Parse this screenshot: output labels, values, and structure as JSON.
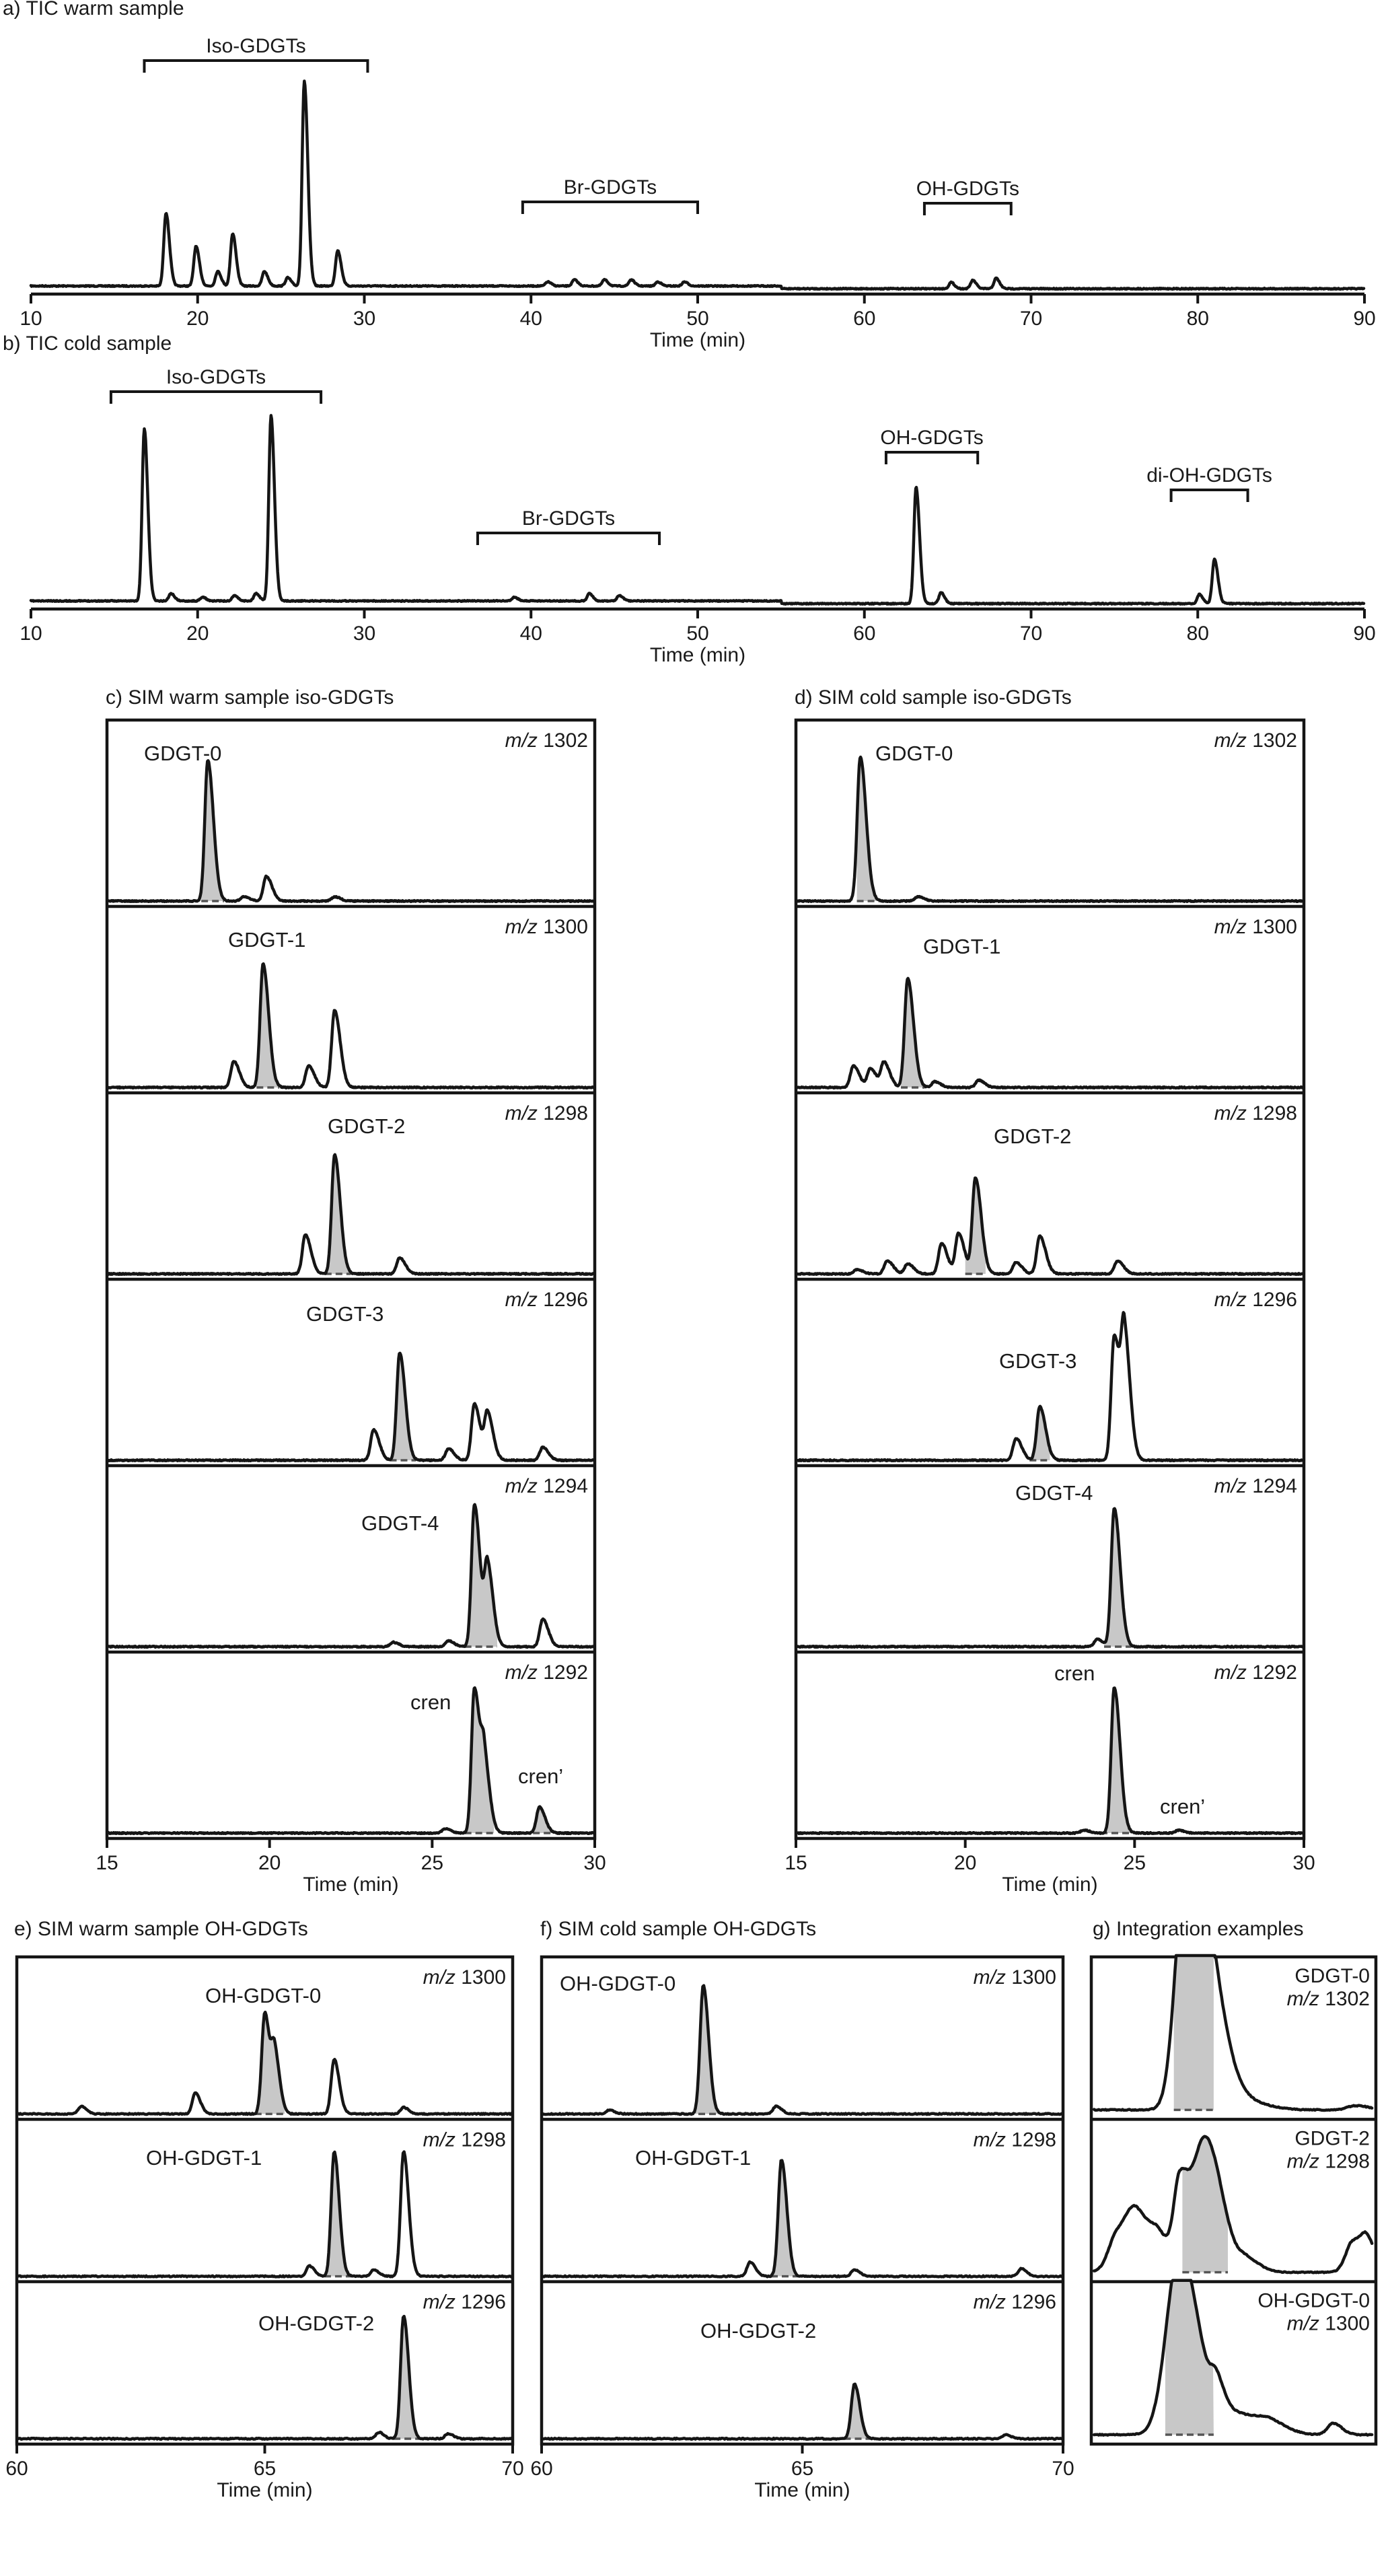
{
  "figure_type": "GC-MS chromatograms (TIC and SIM) of GDGT lipids",
  "panels": {
    "a": {
      "title": "a) TIC warm sample",
      "xlabel": "Time (min)",
      "xlim": [
        10,
        90
      ],
      "ticks": [
        10,
        20,
        30,
        40,
        50,
        60,
        70,
        80,
        90
      ],
      "groups": [
        {
          "label": "Iso-GDGTs",
          "x1": 16.8,
          "x2": 30.2
        },
        {
          "label": "Br-GDGTs",
          "x1": 39.5,
          "x2": 50.0
        },
        {
          "label": "OH-GDGTs",
          "x1": 63.6,
          "x2": 68.8
        }
      ]
    },
    "b": {
      "title": "b) TIC cold sample",
      "xlabel": "Time (min)",
      "xlim": [
        10,
        90
      ],
      "ticks": [
        10,
        20,
        30,
        40,
        50,
        60,
        70,
        80,
        90
      ],
      "groups": [
        {
          "label": "Iso-GDGTs",
          "x1": 14.8,
          "x2": 27.4
        },
        {
          "label": "Br-GDGTs",
          "x1": 36.8,
          "x2": 47.7
        },
        {
          "label": "OH-GDGTs",
          "x1": 61.3,
          "x2": 66.8
        },
        {
          "label": "di-OH-GDGTs",
          "x1": 78.4,
          "x2": 83.0
        }
      ]
    },
    "c": {
      "title": "c) SIM warm sample iso-GDGTs",
      "xlabel": "Time (min)",
      "xlim": [
        15,
        30
      ],
      "ticks": [
        15,
        20,
        25,
        30
      ]
    },
    "d": {
      "title": "d) SIM cold sample iso-GDGTs",
      "xlabel": "Time (min)",
      "xlim": [
        15,
        30
      ],
      "ticks": [
        15,
        20,
        25,
        30
      ]
    },
    "e": {
      "title": "e) SIM warm sample OH-GDGTs",
      "xlabel": "Time (min)",
      "xlim": [
        60,
        70
      ],
      "ticks": [
        60,
        65,
        70
      ]
    },
    "f": {
      "title": "f) SIM cold sample OH-GDGTs",
      "xlabel": "Time (min)",
      "xlim": [
        60,
        70
      ],
      "ticks": [
        60,
        65,
        70
      ]
    },
    "g": {
      "title": "g) Integration examples"
    }
  },
  "mz_prefix": "m/z",
  "chart_data": [
    {
      "id": "a",
      "type": "line",
      "title": "a) TIC warm sample",
      "xlabel": "Time (min)",
      "xlim": [
        10,
        90
      ],
      "baseline_step_at": 55,
      "peaks": [
        {
          "x": 18.1,
          "y": 0.35
        },
        {
          "x": 19.9,
          "y": 0.19
        },
        {
          "x": 21.2,
          "y": 0.07
        },
        {
          "x": 22.1,
          "y": 0.25
        },
        {
          "x": 24.0,
          "y": 0.07
        },
        {
          "x": 25.4,
          "y": 0.04
        },
        {
          "x": 26.4,
          "y": 0.98
        },
        {
          "x": 28.4,
          "y": 0.17
        },
        {
          "x": 41.0,
          "y": 0.02
        },
        {
          "x": 42.6,
          "y": 0.03
        },
        {
          "x": 44.4,
          "y": 0.03
        },
        {
          "x": 46.0,
          "y": 0.03
        },
        {
          "x": 47.6,
          "y": 0.02
        },
        {
          "x": 49.2,
          "y": 0.02
        },
        {
          "x": 65.2,
          "y": 0.03
        },
        {
          "x": 66.5,
          "y": 0.04
        },
        {
          "x": 67.9,
          "y": 0.05
        }
      ]
    },
    {
      "id": "b",
      "type": "line",
      "title": "b) TIC cold sample",
      "xlabel": "Time (min)",
      "xlim": [
        10,
        90
      ],
      "baseline_step_at": 55,
      "peaks": [
        {
          "x": 16.8,
          "y": 0.93
        },
        {
          "x": 18.4,
          "y": 0.04
        },
        {
          "x": 20.3,
          "y": 0.02
        },
        {
          "x": 22.2,
          "y": 0.03
        },
        {
          "x": 23.5,
          "y": 0.04
        },
        {
          "x": 24.4,
          "y": 1.0
        },
        {
          "x": 39.0,
          "y": 0.02
        },
        {
          "x": 43.5,
          "y": 0.04
        },
        {
          "x": 45.3,
          "y": 0.03
        },
        {
          "x": 63.1,
          "y": 0.63
        },
        {
          "x": 64.6,
          "y": 0.06
        },
        {
          "x": 80.1,
          "y": 0.05
        },
        {
          "x": 81.0,
          "y": 0.24
        }
      ]
    },
    {
      "id": "c",
      "type": "line",
      "title": "c) SIM warm sample iso-GDGTs",
      "xlabel": "Time (min)",
      "xlim": [
        15,
        30
      ],
      "traces": [
        {
          "mz": "1302",
          "label": "GDGT-0",
          "fill": [
            17.9,
            18.6
          ],
          "peaks": [
            {
              "x": 18.1,
              "y": 0.97
            },
            {
              "x": 19.2,
              "y": 0.03
            },
            {
              "x": 19.9,
              "y": 0.17
            },
            {
              "x": 22.0,
              "y": 0.03
            }
          ]
        },
        {
          "mz": "1300",
          "label": "GDGT-1",
          "fill": [
            19.6,
            20.3
          ],
          "peaks": [
            {
              "x": 18.9,
              "y": 0.18
            },
            {
              "x": 19.8,
              "y": 0.85
            },
            {
              "x": 21.2,
              "y": 0.15
            },
            {
              "x": 22.0,
              "y": 0.53
            }
          ]
        },
        {
          "mz": "1298",
          "label": "GDGT-2",
          "fill": [
            21.7,
            22.5
          ],
          "peaks": [
            {
              "x": 21.1,
              "y": 0.27
            },
            {
              "x": 22.0,
              "y": 0.82
            },
            {
              "x": 24.0,
              "y": 0.11
            }
          ]
        },
        {
          "mz": "1296",
          "label": "GDGT-3",
          "fill": [
            23.7,
            24.5
          ],
          "peaks": [
            {
              "x": 23.2,
              "y": 0.21
            },
            {
              "x": 24.0,
              "y": 0.74
            },
            {
              "x": 25.5,
              "y": 0.08
            },
            {
              "x": 26.3,
              "y": 0.39
            },
            {
              "x": 26.7,
              "y": 0.32
            },
            {
              "x": 28.4,
              "y": 0.09
            }
          ]
        },
        {
          "mz": "1294",
          "label": "GDGT-4",
          "fill": [
            26.0,
            27.0
          ],
          "peaks": [
            {
              "x": 23.8,
              "y": 0.03
            },
            {
              "x": 25.5,
              "y": 0.04
            },
            {
              "x": 26.3,
              "y": 0.98
            },
            {
              "x": 26.7,
              "y": 0.55
            },
            {
              "x": 28.4,
              "y": 0.19
            }
          ]
        },
        {
          "mz": "1292",
          "label": "cren",
          "label2": "cren’",
          "fill": [
            26.0,
            26.9
          ],
          "fill2": [
            28.1,
            28.7
          ],
          "peaks": [
            {
              "x": 25.4,
              "y": 0.03
            },
            {
              "x": 26.3,
              "y": 1.0
            },
            {
              "x": 26.6,
              "y": 0.45
            },
            {
              "x": 28.3,
              "y": 0.18
            }
          ]
        }
      ]
    },
    {
      "id": "d",
      "type": "line",
      "title": "d) SIM cold sample iso-GDGTs",
      "xlabel": "Time (min)",
      "xlim": [
        15,
        30
      ],
      "traces": [
        {
          "mz": "1302",
          "label": "GDGT-0",
          "fill": [
            16.8,
            17.5
          ],
          "peaks": [
            {
              "x": 16.9,
              "y": 0.99
            },
            {
              "x": 18.6,
              "y": 0.03
            }
          ]
        },
        {
          "mz": "1300",
          "label": "GDGT-1",
          "fill": [
            18.1,
            18.8
          ],
          "peaks": [
            {
              "x": 16.7,
              "y": 0.15
            },
            {
              "x": 17.2,
              "y": 0.13
            },
            {
              "x": 17.6,
              "y": 0.17
            },
            {
              "x": 18.3,
              "y": 0.75
            },
            {
              "x": 19.1,
              "y": 0.04
            },
            {
              "x": 20.4,
              "y": 0.05
            }
          ]
        },
        {
          "mz": "1298",
          "label": "GDGT-2",
          "fill": [
            20.0,
            20.6
          ],
          "peaks": [
            {
              "x": 16.8,
              "y": 0.03
            },
            {
              "x": 17.7,
              "y": 0.09
            },
            {
              "x": 18.3,
              "y": 0.07
            },
            {
              "x": 19.3,
              "y": 0.21
            },
            {
              "x": 19.8,
              "y": 0.28
            },
            {
              "x": 20.3,
              "y": 0.66
            },
            {
              "x": 21.5,
              "y": 0.08
            },
            {
              "x": 22.2,
              "y": 0.26
            },
            {
              "x": 24.5,
              "y": 0.09
            }
          ]
        },
        {
          "mz": "1296",
          "label": "GDGT-3",
          "fill": [
            21.9,
            22.5
          ],
          "peaks": [
            {
              "x": 21.5,
              "y": 0.15
            },
            {
              "x": 22.2,
              "y": 0.37
            },
            {
              "x": 24.4,
              "y": 0.86
            },
            {
              "x": 24.7,
              "y": 0.81
            }
          ]
        },
        {
          "mz": "1294",
          "label": "GDGT-4",
          "fill": [
            24.1,
            24.9
          ],
          "peaks": [
            {
              "x": 23.9,
              "y": 0.05
            },
            {
              "x": 24.4,
              "y": 0.95
            }
          ]
        },
        {
          "mz": "1292",
          "label": "cren",
          "label2": "cren’",
          "fill": [
            24.0,
            25.0
          ],
          "peaks": [
            {
              "x": 23.5,
              "y": 0.02
            },
            {
              "x": 24.4,
              "y": 1.0
            },
            {
              "x": 26.3,
              "y": 0.02
            }
          ]
        }
      ]
    },
    {
      "id": "e",
      "type": "line",
      "title": "e) SIM warm sample OH-GDGTs",
      "xlabel": "Time (min)",
      "xlim": [
        60,
        70
      ],
      "traces": [
        {
          "mz": "1300",
          "label": "OH-GDGT-0",
          "fill": [
            64.8,
            65.4
          ],
          "peaks": [
            {
              "x": 61.3,
              "y": 0.06
            },
            {
              "x": 63.6,
              "y": 0.16
            },
            {
              "x": 65.0,
              "y": 0.78
            },
            {
              "x": 65.2,
              "y": 0.45
            },
            {
              "x": 66.4,
              "y": 0.42
            },
            {
              "x": 67.8,
              "y": 0.05
            }
          ]
        },
        {
          "mz": "1298",
          "label": "OH-GDGT-1",
          "fill": [
            66.2,
            66.8
          ],
          "peaks": [
            {
              "x": 65.9,
              "y": 0.08
            },
            {
              "x": 66.4,
              "y": 0.96
            },
            {
              "x": 67.8,
              "y": 0.96
            },
            {
              "x": 67.2,
              "y": 0.05
            }
          ]
        },
        {
          "mz": "1296",
          "label": "OH-GDGT-2",
          "fill": [
            67.6,
            68.2
          ],
          "peaks": [
            {
              "x": 67.3,
              "y": 0.05
            },
            {
              "x": 67.8,
              "y": 0.95
            },
            {
              "x": 68.7,
              "y": 0.04
            }
          ]
        }
      ]
    },
    {
      "id": "f",
      "type": "line",
      "title": "f) SIM cold sample OH-GDGTs",
      "xlabel": "Time (min)",
      "xlim": [
        60,
        70
      ],
      "traces": [
        {
          "mz": "1300",
          "label": "OH-GDGT-0",
          "fill": [
            62.8,
            63.5
          ],
          "peaks": [
            {
              "x": 61.3,
              "y": 0.03
            },
            {
              "x": 63.1,
              "y": 0.99
            },
            {
              "x": 64.5,
              "y": 0.06
            }
          ]
        },
        {
          "mz": "1298",
          "label": "OH-GDGT-1",
          "fill": [
            64.4,
            65.0
          ],
          "peaks": [
            {
              "x": 64.0,
              "y": 0.11
            },
            {
              "x": 64.6,
              "y": 0.9
            },
            {
              "x": 66.0,
              "y": 0.05
            },
            {
              "x": 69.2,
              "y": 0.06
            }
          ]
        },
        {
          "mz": "1296",
          "label": "OH-GDGT-2",
          "fill": [
            65.8,
            66.3
          ],
          "peaks": [
            {
              "x": 66.0,
              "y": 0.42
            },
            {
              "x": 68.9,
              "y": 0.03
            }
          ]
        }
      ]
    },
    {
      "id": "g",
      "type": "line",
      "title": "g) Integration examples",
      "traces": [
        {
          "name": "GDGT-0",
          "mz": "1302",
          "fill": [
            0.29,
            0.43
          ]
        },
        {
          "name": "GDGT-2",
          "mz": "1298",
          "fill": [
            0.32,
            0.48
          ]
        },
        {
          "name": "OH-GDGT-0",
          "mz": "1300",
          "fill": [
            0.26,
            0.43
          ]
        }
      ]
    }
  ]
}
